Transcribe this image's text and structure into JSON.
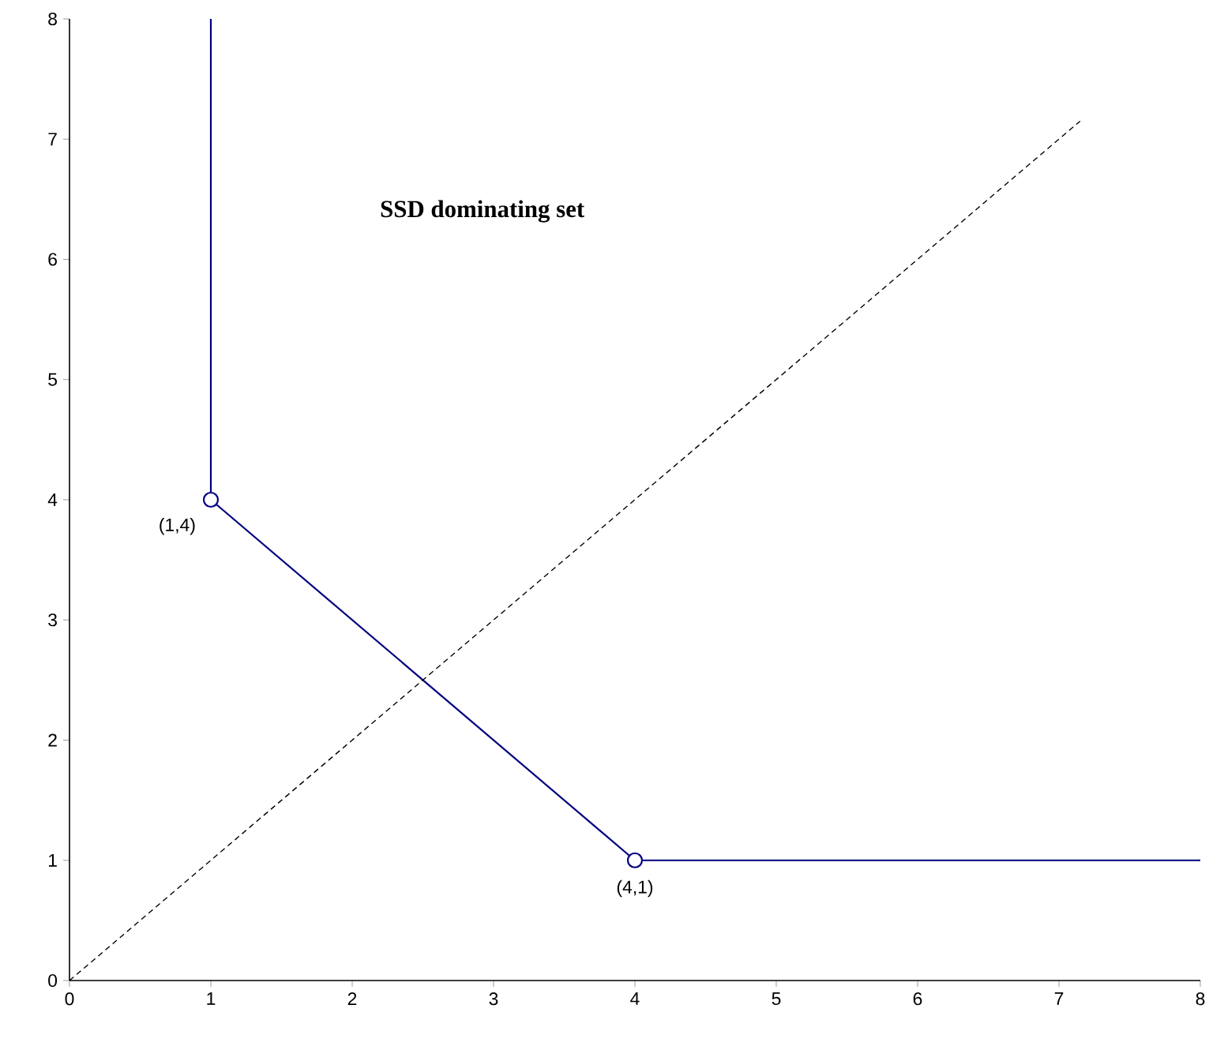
{
  "chart_data": {
    "type": "line",
    "title": "SSD dominating set",
    "xlim": [
      0,
      8
    ],
    "ylim": [
      0,
      8
    ],
    "xticks": [
      0,
      1,
      2,
      3,
      4,
      5,
      6,
      7,
      8
    ],
    "yticks": [
      0,
      1,
      2,
      3,
      4,
      5,
      6,
      7,
      8
    ],
    "series": [
      {
        "x": [
          1,
          1,
          4,
          8
        ],
        "values": [
          8,
          4,
          1,
          1
        ],
        "color": "#000080",
        "line_style": "solid",
        "marker": "none"
      },
      {
        "x": [
          0,
          7.15
        ],
        "values": [
          0,
          7.15
        ],
        "color": "#000000",
        "line_style": "dashed",
        "marker": "none"
      },
      {
        "type": "scatter",
        "x": [
          1,
          4
        ],
        "values": [
          4,
          1
        ],
        "color": "#000080",
        "marker": "circle"
      }
    ],
    "annotations": [
      {
        "text": "(1,4)",
        "x": 1,
        "y": 4
      },
      {
        "text": "(4,1)",
        "x": 4,
        "y": 1
      }
    ]
  }
}
